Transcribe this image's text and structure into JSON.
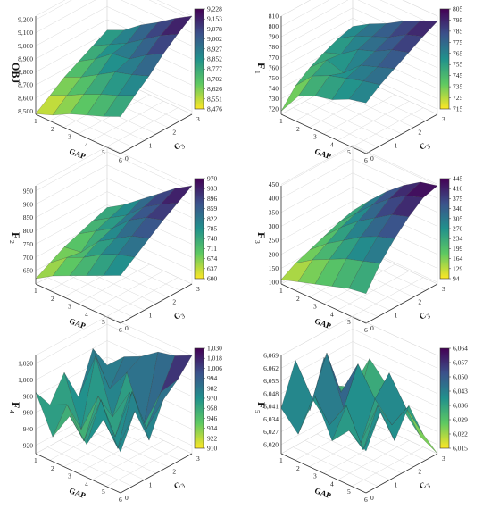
{
  "chart_data": [
    {
      "type": "surface",
      "zlabel": "OBJ",
      "xlabel": "GAP",
      "ylabel": "C3",
      "zticks": [
        "9,200",
        "9,100",
        "9,000",
        "8,900",
        "8,800",
        "8,700",
        "8,600",
        "8,500"
      ],
      "zlim": [
        8476,
        9228
      ],
      "colorbar": [
        "9,228",
        "9,153",
        "9,078",
        "9,002",
        "8,927",
        "8,852",
        "8,777",
        "8,702",
        "8,626",
        "8,551",
        "8,476"
      ],
      "z": [
        [
          8480,
          8560,
          8640,
          8700,
          8760,
          8820
        ],
        [
          8530,
          8620,
          8700,
          8780,
          8830,
          8880
        ],
        [
          8600,
          8690,
          8780,
          8880,
          8900,
          8980
        ],
        [
          8650,
          8750,
          8860,
          8900,
          8990,
          9060
        ],
        [
          8700,
          8800,
          8900,
          8990,
          9080,
          9150
        ],
        [
          8760,
          8860,
          8950,
          9060,
          9150,
          9228
        ]
      ]
    },
    {
      "type": "surface",
      "zlabel": "F1",
      "xlabel": "GAP",
      "ylabel": "C3",
      "zticks": [
        "810",
        "800",
        "790",
        "780",
        "770",
        "760",
        "750",
        "740",
        "730",
        "720"
      ],
      "zlim": [
        715,
        810
      ],
      "colorbar": [
        "805",
        "795",
        "785",
        "775",
        "765",
        "755",
        "745",
        "735",
        "725",
        "715"
      ],
      "z": [
        [
          718,
          735,
          745,
          752,
          758,
          762
        ],
        [
          740,
          752,
          760,
          758,
          768,
          772
        ],
        [
          748,
          760,
          755,
          770,
          775,
          780
        ],
        [
          752,
          765,
          770,
          776,
          782,
          790
        ],
        [
          760,
          770,
          776,
          785,
          792,
          798
        ],
        [
          764,
          774,
          782,
          790,
          798,
          805
        ]
      ]
    },
    {
      "type": "surface",
      "zlabel": "F2",
      "xlabel": "GAP",
      "ylabel": "C3",
      "zticks": [
        "950",
        "900",
        "850",
        "800",
        "750",
        "700",
        "650"
      ],
      "zlim": [
        600,
        970
      ],
      "colorbar": [
        "970",
        "933",
        "896",
        "859",
        "822",
        "785",
        "748",
        "711",
        "674",
        "637",
        "600"
      ],
      "z": [
        [
          620,
          650,
          680,
          700,
          720,
          740
        ],
        [
          660,
          700,
          690,
          740,
          760,
          780
        ],
        [
          690,
          730,
          760,
          780,
          800,
          830
        ],
        [
          720,
          770,
          800,
          840,
          860,
          880
        ],
        [
          750,
          800,
          840,
          880,
          900,
          930
        ],
        [
          780,
          820,
          860,
          900,
          935,
          970
        ]
      ]
    },
    {
      "type": "surface",
      "zlabel": "F3",
      "xlabel": "GAP",
      "ylabel": "C3",
      "zticks": [
        "450",
        "400",
        "350",
        "300",
        "250",
        "200",
        "150",
        "100"
      ],
      "zlim": [
        94,
        445
      ],
      "colorbar": [
        "445",
        "410",
        "375",
        "340",
        "305",
        "270",
        "234",
        "199",
        "164",
        "129",
        "94"
      ],
      "z": [
        [
          110,
          140,
          160,
          180,
          200,
          215
        ],
        [
          130,
          180,
          210,
          240,
          260,
          280
        ],
        [
          150,
          210,
          250,
          290,
          320,
          340
        ],
        [
          170,
          240,
          290,
          330,
          370,
          390
        ],
        [
          190,
          260,
          320,
          370,
          410,
          430
        ],
        [
          200,
          280,
          340,
          390,
          430,
          445
        ]
      ]
    },
    {
      "type": "surface",
      "zlabel": "F4",
      "xlabel": "GAP",
      "ylabel": "C3",
      "zticks": [
        "1,020",
        "1,000",
        "980",
        "960",
        "940",
        "920"
      ],
      "zlim": [
        910,
        1030
      ],
      "colorbar": [
        "1,030",
        "1,018",
        "1,006",
        "994",
        "982",
        "970",
        "958",
        "946",
        "934",
        "922",
        "910"
      ],
      "z": [
        [
          985,
          960,
          990,
          950,
          1000,
          970
        ],
        [
          940,
          970,
          930,
          1010,
          960,
          990
        ],
        [
          975,
          935,
          980,
          945,
          990,
          1000
        ],
        [
          950,
          995,
          940,
          985,
          935,
          1015
        ],
        [
          990,
          945,
          1005,
          950,
          985,
          1020
        ],
        [
          960,
          1000,
          955,
          995,
          1010,
          1030
        ]
      ]
    },
    {
      "type": "surface",
      "zlabel": "F5",
      "xlabel": "GAP",
      "ylabel": "C3",
      "zticks": [
        "6,069",
        "6,062",
        "6,055",
        "6,048",
        "6,041",
        "6,034",
        "6,027",
        "6,020"
      ],
      "zlim": [
        6015,
        6069
      ],
      "colorbar": [
        "6,064",
        "6,057",
        "6,050",
        "6,043",
        "6,036",
        "6,029",
        "6,022",
        "6,015"
      ],
      "z": [
        [
          6040,
          6062,
          6030,
          6055,
          6035,
          6030
        ],
        [
          6030,
          6045,
          6066,
          6040,
          6025,
          6050
        ],
        [
          6055,
          6035,
          6040,
          6060,
          6030,
          6040
        ],
        [
          6035,
          6050,
          6025,
          6045,
          6055,
          6030
        ],
        [
          6045,
          6030,
          6050,
          6035,
          6040,
          6020
        ],
        [
          6038,
          6055,
          6035,
          6050,
          6030,
          6015
        ]
      ]
    }
  ]
}
